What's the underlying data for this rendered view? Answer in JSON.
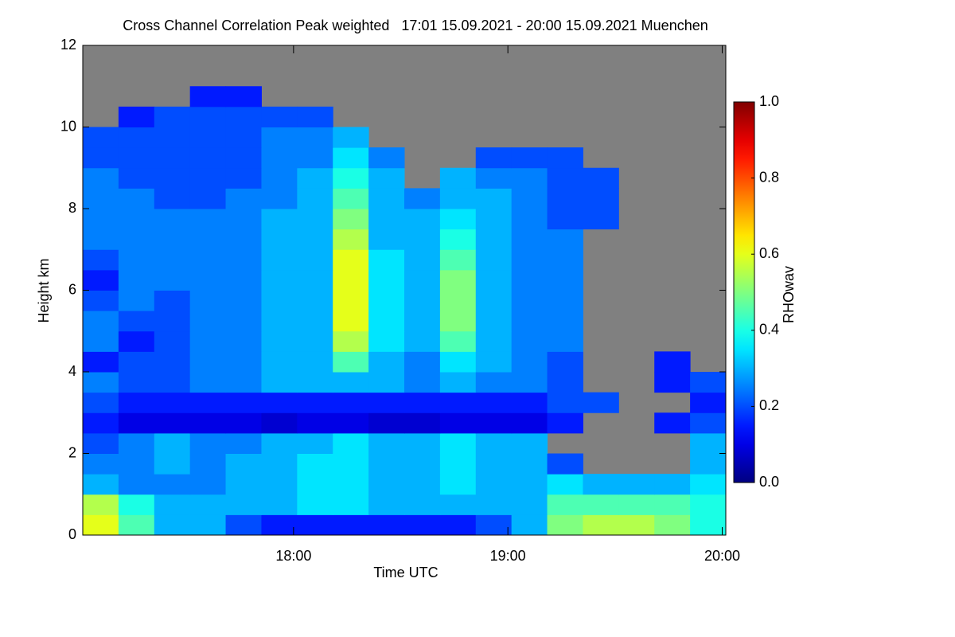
{
  "chart_data": {
    "type": "heatmap",
    "title": "Cross Channel Correlation Peak weighted   17:01 15.09.2021 - 20:00 15.09.2021 Muenchen",
    "x_label": "Time UTC",
    "y_label": "Height km",
    "colorbar_label": "RHOwav",
    "colormap": "jet",
    "missing_color": "#808080",
    "x_bins": [
      1021,
      1031,
      1041,
      1051,
      1061,
      1071,
      1081,
      1091,
      1101,
      1111,
      1121,
      1131,
      1141,
      1151,
      1161,
      1171,
      1181,
      1191,
      1201
    ],
    "y_bins": [
      0,
      0.5,
      1,
      1.5,
      2,
      2.5,
      3,
      3.5,
      4,
      4.5,
      5,
      5.5,
      6,
      6.5,
      7,
      7.5,
      8,
      8.5,
      9,
      9.5,
      10,
      10.5,
      11,
      11.5,
      12
    ],
    "values": [
      [
        0.6,
        0.45,
        0.3,
        0.3,
        0.2,
        0.15,
        0.15,
        0.15,
        0.15,
        0.15,
        0.15,
        0.2,
        0.3,
        0.5,
        0.55,
        0.55,
        0.5,
        0.4
      ],
      [
        0.55,
        0.4,
        0.3,
        0.3,
        0.3,
        0.3,
        0.35,
        0.35,
        0.3,
        0.3,
        0.3,
        0.3,
        0.3,
        0.45,
        0.45,
        0.45,
        0.45,
        0.4
      ],
      [
        0.3,
        0.25,
        0.25,
        0.25,
        0.3,
        0.3,
        0.35,
        0.35,
        0.3,
        0.3,
        0.35,
        0.3,
        0.3,
        0.35,
        0.3,
        0.3,
        0.3,
        0.35
      ],
      [
        0.25,
        0.25,
        0.3,
        0.25,
        0.3,
        0.3,
        0.35,
        0.35,
        0.3,
        0.3,
        0.35,
        0.3,
        0.3,
        0.2,
        null,
        null,
        null,
        0.3
      ],
      [
        0.2,
        0.25,
        0.3,
        0.25,
        0.25,
        0.3,
        0.3,
        0.35,
        0.3,
        0.3,
        0.35,
        0.3,
        0.3,
        null,
        null,
        null,
        null,
        0.3
      ],
      [
        0.15,
        0.1,
        0.1,
        0.1,
        0.1,
        0.08,
        0.1,
        0.1,
        0.08,
        0.08,
        0.1,
        0.1,
        0.1,
        0.15,
        null,
        null,
        0.15,
        0.2
      ],
      [
        0.2,
        0.15,
        0.15,
        0.15,
        0.15,
        0.15,
        0.15,
        0.15,
        0.15,
        0.15,
        0.15,
        0.15,
        0.15,
        0.2,
        0.2,
        null,
        null,
        0.15
      ],
      [
        0.25,
        0.2,
        0.2,
        0.25,
        0.25,
        0.3,
        0.3,
        0.3,
        0.3,
        0.25,
        0.3,
        0.25,
        0.25,
        0.2,
        null,
        null,
        0.15,
        0.2
      ],
      [
        0.15,
        0.2,
        0.2,
        0.25,
        0.25,
        0.3,
        0.3,
        0.45,
        0.3,
        0.25,
        0.35,
        0.3,
        0.25,
        0.2,
        null,
        null,
        0.15,
        null
      ],
      [
        0.25,
        0.15,
        0.2,
        0.25,
        0.25,
        0.3,
        0.3,
        0.55,
        0.35,
        0.3,
        0.45,
        0.3,
        0.25,
        0.25,
        null,
        null,
        null,
        null
      ],
      [
        0.25,
        0.2,
        0.2,
        0.25,
        0.25,
        0.3,
        0.3,
        0.6,
        0.35,
        0.3,
        0.5,
        0.3,
        0.25,
        0.25,
        null,
        null,
        null,
        null
      ],
      [
        0.2,
        0.25,
        0.2,
        0.25,
        0.25,
        0.3,
        0.3,
        0.6,
        0.35,
        0.3,
        0.5,
        0.3,
        0.25,
        0.25,
        null,
        null,
        null,
        null
      ],
      [
        0.15,
        0.25,
        0.25,
        0.25,
        0.25,
        0.3,
        0.3,
        0.6,
        0.35,
        0.3,
        0.5,
        0.3,
        0.25,
        0.25,
        null,
        null,
        null,
        null
      ],
      [
        0.2,
        0.25,
        0.25,
        0.25,
        0.25,
        0.3,
        0.3,
        0.6,
        0.35,
        0.3,
        0.45,
        0.3,
        0.25,
        0.25,
        null,
        null,
        null,
        null
      ],
      [
        0.25,
        0.25,
        0.25,
        0.25,
        0.25,
        0.3,
        0.3,
        0.55,
        0.3,
        0.3,
        0.4,
        0.3,
        0.25,
        0.25,
        null,
        null,
        null,
        null
      ],
      [
        0.25,
        0.25,
        0.25,
        0.25,
        0.25,
        0.3,
        0.3,
        0.5,
        0.3,
        0.3,
        0.35,
        0.3,
        0.25,
        0.2,
        0.2,
        null,
        null,
        null
      ],
      [
        0.25,
        0.25,
        0.2,
        0.2,
        0.25,
        0.25,
        0.3,
        0.45,
        0.3,
        0.25,
        0.3,
        0.3,
        0.25,
        0.2,
        0.2,
        null,
        null,
        null
      ],
      [
        0.25,
        0.2,
        0.2,
        0.2,
        0.2,
        0.25,
        0.3,
        0.4,
        0.3,
        null,
        0.3,
        0.25,
        0.25,
        0.2,
        0.2,
        null,
        null,
        null
      ],
      [
        0.2,
        0.2,
        0.2,
        0.2,
        0.2,
        0.25,
        0.25,
        0.35,
        0.25,
        null,
        null,
        0.2,
        0.2,
        0.2,
        null,
        null,
        null,
        null
      ],
      [
        0.2,
        0.2,
        0.2,
        0.2,
        0.2,
        0.25,
        0.25,
        0.3,
        null,
        null,
        null,
        null,
        null,
        null,
        null,
        null,
        null,
        null
      ],
      [
        null,
        0.15,
        0.2,
        0.2,
        0.2,
        0.2,
        0.2,
        null,
        null,
        null,
        null,
        null,
        null,
        null,
        null,
        null,
        null,
        null
      ],
      [
        null,
        null,
        null,
        0.15,
        0.15,
        null,
        null,
        null,
        null,
        null,
        null,
        null,
        null,
        null,
        null,
        null,
        null,
        null
      ],
      [
        null,
        null,
        null,
        null,
        null,
        null,
        null,
        null,
        null,
        null,
        null,
        null,
        null,
        null,
        null,
        null,
        null,
        null
      ],
      [
        null,
        null,
        null,
        null,
        null,
        null,
        null,
        null,
        null,
        null,
        null,
        null,
        null,
        null,
        null,
        null,
        null,
        null
      ]
    ],
    "xlim": [
      1021,
      1201
    ],
    "xticks": [
      {
        "value": 1080,
        "label": "18:00"
      },
      {
        "value": 1140,
        "label": "19:00"
      },
      {
        "value": 1200,
        "label": "20:00"
      }
    ],
    "ylim": [
      0,
      12
    ],
    "yticks": [
      0,
      2,
      4,
      6,
      8,
      10,
      12
    ],
    "clim": [
      0,
      1
    ],
    "cticks": [
      {
        "value": 0,
        "label": "0.0"
      },
      {
        "value": 0.2,
        "label": "0.2"
      },
      {
        "value": 0.4,
        "label": "0.4"
      },
      {
        "value": 0.6,
        "label": "0.6"
      },
      {
        "value": 0.8,
        "label": "0.8"
      },
      {
        "value": 1,
        "label": "1.0"
      }
    ]
  }
}
